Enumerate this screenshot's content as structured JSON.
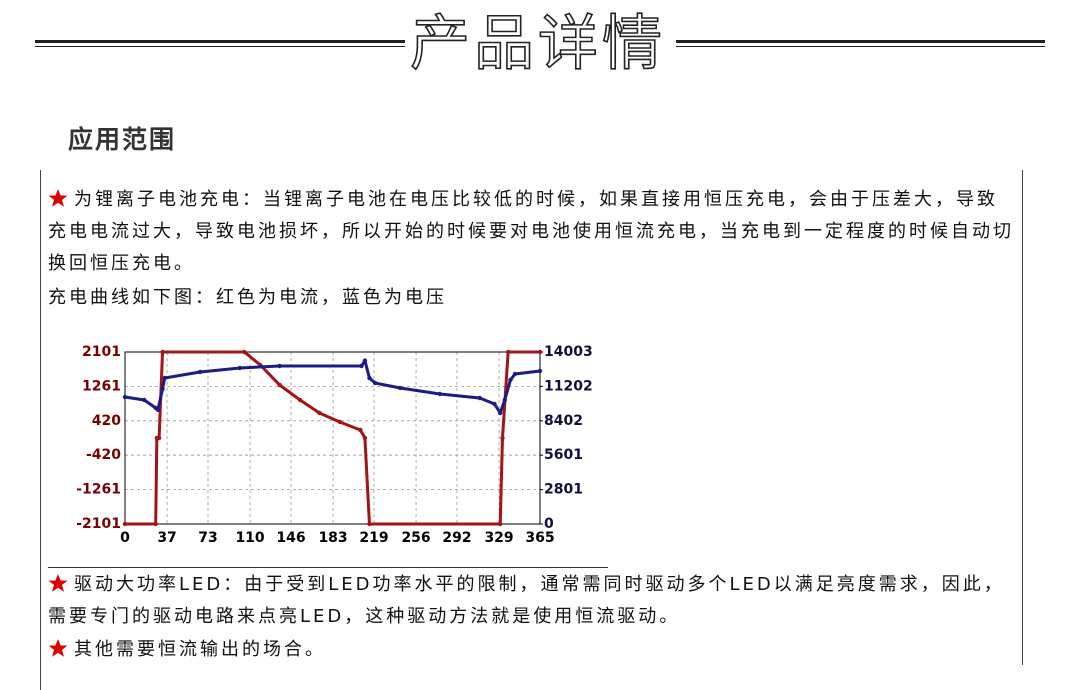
{
  "header": {
    "title": "产品详情"
  },
  "section": {
    "heading": "应用范围"
  },
  "paragraphs": [
    "为锂离子电池充电：当锂离子电池在电压比较低的时候，如果直接用恒压充电，会由于压差大，导致充电电流过大，导致电池损坏，所以开始的时候要对电池使用恒流充电，当充电到一定程度的时候自动切换回恒压充电。",
    "充电曲线如下图：红色为电流，蓝色为电压",
    "驱动大功率LED：由于受到LED功率水平的限制，通常需同时驱动多个LED以满足亮度需求，因此，需要专门的驱动电路来点亮LED，这种驱动方法就是使用恒流驱动。",
    "其他需要恒流输出的场合。"
  ],
  "chart_data": {
    "type": "line",
    "xlim": [
      0,
      365
    ],
    "xticks": [
      0,
      37,
      73,
      110,
      146,
      183,
      219,
      256,
      292,
      329,
      365
    ],
    "ylim": [
      -2101,
      2101
    ],
    "yticks": [
      -2101,
      -1261,
      -420,
      420,
      1261,
      2101
    ],
    "y2lim": [
      0,
      14003
    ],
    "y2ticks": [
      0,
      2801,
      5601,
      8402,
      11202,
      14003
    ],
    "grid": true,
    "series": [
      {
        "color": "#a31515",
        "x": [
          0,
          27,
          28,
          30,
          33,
          105,
          119,
          136,
          154,
          171,
          189,
          207,
          211,
          215,
          330,
          332,
          337,
          365
        ],
        "values": [
          -2101,
          -2101,
          0,
          0,
          2101,
          2101,
          1783,
          1295,
          928,
          611,
          391,
          196,
          0,
          -2101,
          -2101,
          0,
          2101,
          2101
        ]
      },
      {
        "color": "#1c1c86",
        "axis": "y2",
        "x": [
          0,
          17,
          27,
          29,
          33,
          35,
          66,
          101,
          136,
          208,
          211,
          215,
          220,
          242,
          277,
          312,
          325,
          330,
          334,
          339,
          343,
          365
        ],
        "values": [
          10339,
          10095,
          9444,
          9300,
          11000,
          11886,
          12375,
          12700,
          12863,
          12863,
          13300,
          11886,
          11479,
          11072,
          10584,
          10258,
          9770,
          9037,
          10095,
          11723,
          12212,
          12456
        ]
      }
    ]
  }
}
